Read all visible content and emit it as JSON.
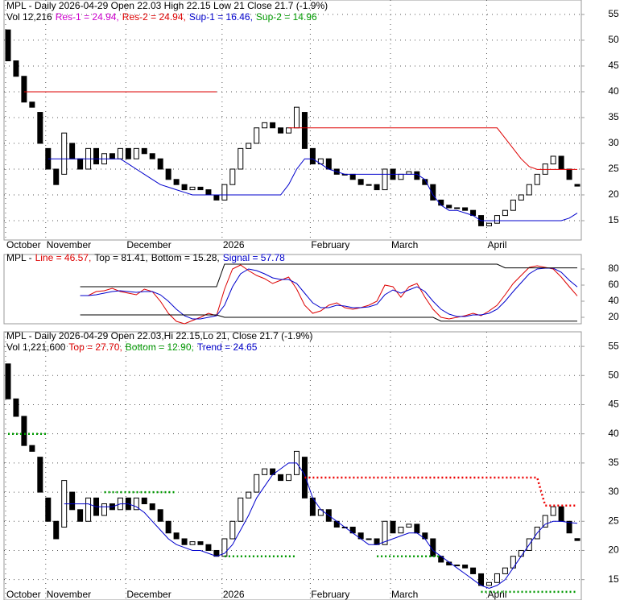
{
  "chart_data": [
    {
      "type": "candlestick",
      "title": "MPL - Daily 2026-04-29 Open 22.03  High 22.15  Low 21  Close 21.7  (-1.9%)",
      "info": [
        {
          "text": "Vol 12,216",
          "color": "#000000"
        },
        {
          "text": "Res-1 = 24.94,",
          "color": "#cc00cc"
        },
        {
          "text": "Res-2 = 24.94,",
          "color": "#dd0000"
        },
        {
          "text": "Sup-1 = 16.46,",
          "color": "#0000cc"
        },
        {
          "text": "Sup-2 = 14.96",
          "color": "#009900"
        }
      ],
      "categories": [
        "October",
        null,
        null,
        null,
        null,
        "November",
        null,
        null,
        null,
        null,
        null,
        null,
        null,
        null,
        null,
        "December",
        null,
        null,
        null,
        null,
        null,
        null,
        null,
        null,
        null,
        null,
        null,
        "2026",
        null,
        null,
        null,
        null,
        null,
        null,
        null,
        null,
        null,
        null,
        "February",
        null,
        null,
        null,
        null,
        null,
        null,
        null,
        null,
        null,
        "March",
        null,
        null,
        null,
        null,
        null,
        null,
        null,
        null,
        null,
        null,
        null,
        "April",
        null,
        null,
        null,
        null,
        null,
        null,
        null,
        null,
        null,
        null,
        null
      ],
      "open": [
        52,
        46,
        43,
        38,
        36,
        29,
        25,
        24,
        30,
        27,
        25,
        29,
        26,
        28,
        27,
        29,
        27,
        29,
        28,
        27,
        25,
        23,
        22,
        21,
        21.5,
        21,
        20,
        19,
        22,
        25,
        29,
        30,
        33,
        34,
        33,
        32,
        33,
        36,
        29,
        26,
        27,
        25,
        24,
        24,
        23,
        22,
        22,
        21,
        25,
        23,
        24,
        24.5,
        23,
        22,
        19,
        18,
        17.5,
        17.5,
        17,
        16,
        14,
        14.5,
        16,
        17,
        19,
        20,
        22,
        24,
        26,
        27.5,
        25,
        22.03
      ],
      "close": [
        46,
        43,
        38,
        37,
        30,
        25,
        22,
        32,
        27,
        25,
        29,
        26,
        28,
        27,
        29,
        27,
        29,
        28,
        27,
        25,
        23,
        22,
        21,
        21.5,
        21,
        20,
        19,
        22,
        25,
        29,
        30,
        33,
        34,
        33,
        32,
        33,
        37,
        29,
        26,
        27,
        25,
        24,
        24,
        23,
        22,
        22,
        21,
        25,
        23,
        24,
        24.5,
        23,
        22,
        19,
        18,
        17.5,
        17.5,
        17,
        16,
        14,
        14.5,
        16,
        17,
        19,
        20,
        22,
        24,
        26,
        27.5,
        25,
        23,
        21.7
      ],
      "series": [
        {
          "color": "#dd0000",
          "dashed": false,
          "values": [
            null,
            null,
            40,
            40,
            40,
            40,
            40,
            40,
            40,
            40,
            40,
            40,
            40,
            40,
            40,
            40,
            40,
            40,
            40,
            40,
            40,
            40,
            40,
            40,
            40,
            40,
            40,
            null,
            null,
            null,
            null,
            null,
            null,
            null,
            null,
            33,
            33,
            33,
            33,
            33,
            33,
            33,
            33,
            33,
            33,
            33,
            33,
            33,
            33,
            33,
            33,
            33,
            33,
            33,
            33,
            33,
            33,
            33,
            33,
            33,
            33,
            33,
            31,
            29,
            27,
            25.5,
            24.94,
            24.94,
            24.94,
            24.94,
            24.94,
            24.94
          ]
        },
        {
          "color": "#0000cc",
          "dashed": false,
          "values": [
            null,
            null,
            null,
            null,
            null,
            27,
            27,
            27,
            27,
            27,
            27,
            27,
            27,
            27,
            27,
            26,
            25,
            24,
            23,
            22,
            21.5,
            21,
            20.5,
            20,
            20,
            20,
            20,
            20,
            20,
            20,
            20,
            20,
            20,
            20,
            20,
            22,
            25,
            27,
            27,
            26,
            25,
            24.5,
            24,
            24,
            24,
            24,
            24,
            24,
            24,
            24,
            24,
            24,
            23,
            20,
            18,
            17,
            17,
            16.5,
            16,
            15,
            15,
            15,
            15,
            15,
            15,
            15,
            15,
            15,
            15,
            15,
            15.5,
            16.46
          ]
        }
      ],
      "ylim": [
        11.25,
        57.8
      ],
      "yticks": [
        15,
        20,
        25,
        30,
        35,
        40,
        45,
        50,
        55
      ],
      "grid": true
    },
    {
      "type": "line",
      "info": [
        {
          "text": "MPL -",
          "color": "#000000"
        },
        {
          "text": "Line = 46.57,",
          "color": "#dd0000"
        },
        {
          "text": "Top = 81.41,",
          "color": "#000000"
        },
        {
          "text": "Bottom = 15.28,",
          "color": "#000000"
        },
        {
          "text": "Signal = 57.78",
          "color": "#0000cc"
        }
      ],
      "series": [
        {
          "color": "#dd0000",
          "dashed": false,
          "values": [
            null,
            null,
            null,
            null,
            null,
            null,
            null,
            null,
            null,
            47,
            47,
            52,
            53,
            56,
            52,
            50,
            48,
            55,
            52,
            40,
            25,
            15,
            12,
            16,
            20,
            25,
            22,
            55,
            80,
            85,
            78,
            72,
            68,
            62,
            66,
            70,
            55,
            35,
            25,
            28,
            35,
            38,
            32,
            30,
            32,
            35,
            40,
            60,
            58,
            45,
            58,
            62,
            45,
            30,
            20,
            18,
            20,
            22,
            25,
            22,
            28,
            35,
            48,
            62,
            72,
            82,
            84,
            82,
            80,
            70,
            58,
            46.57
          ]
        },
        {
          "color": "#0000cc",
          "dashed": false,
          "values": [
            null,
            null,
            null,
            null,
            null,
            null,
            null,
            null,
            null,
            47,
            47,
            48,
            50,
            52,
            53,
            52,
            51,
            52,
            52,
            48,
            40,
            30,
            22,
            18,
            18,
            20,
            22,
            35,
            58,
            74,
            80,
            78,
            74,
            69,
            67,
            67,
            62,
            50,
            38,
            32,
            32,
            35,
            34,
            32,
            32,
            33,
            36,
            48,
            54,
            50,
            54,
            58,
            52,
            40,
            30,
            24,
            21,
            21,
            23,
            23,
            25,
            30,
            40,
            52,
            63,
            74,
            80,
            81,
            81,
            76,
            66,
            57.78
          ]
        },
        {
          "color": "#000000",
          "dashed": false,
          "values": [
            null,
            null,
            null,
            null,
            null,
            null,
            null,
            null,
            null,
            58,
            58,
            58,
            58,
            58,
            58,
            58,
            58,
            58,
            58,
            58,
            58,
            58,
            58,
            58,
            58,
            58,
            58,
            86,
            86,
            86,
            86,
            86,
            86,
            86,
            86,
            86,
            86,
            86,
            86,
            86,
            86,
            86,
            86,
            86,
            86,
            86,
            86,
            86,
            86,
            86,
            86,
            86,
            86,
            86,
            86,
            86,
            86,
            86,
            86,
            86,
            86,
            86,
            81.41,
            81.41,
            81.41,
            81.41,
            81.41,
            81.41,
            81.41,
            81.41,
            81.41,
            81.41
          ]
        },
        {
          "color": "#000000",
          "dashed": false,
          "values": [
            null,
            null,
            null,
            null,
            null,
            null,
            null,
            null,
            null,
            23,
            23,
            23,
            23,
            23,
            23,
            23,
            23,
            23,
            23,
            23,
            23,
            23,
            23,
            23,
            23,
            23,
            23,
            20,
            20,
            20,
            20,
            20,
            20,
            20,
            20,
            20,
            20,
            20,
            20,
            20,
            20,
            20,
            20,
            20,
            20,
            20,
            20,
            20,
            20,
            20,
            20,
            20,
            20,
            20,
            15.28,
            15.28,
            15.28,
            15.28,
            15.28,
            15.28,
            15.28,
            15.28,
            15.28,
            15.28,
            15.28,
            15.28,
            15.28,
            15.28,
            15.28,
            15.28,
            15.28,
            15.28
          ]
        }
      ],
      "ylim": [
        12,
        98
      ],
      "yticks": [
        20,
        40,
        60,
        80
      ],
      "grid": false
    },
    {
      "type": "candlestick",
      "title": "MPL - Daily 2026-04-29 Open 22.03,Hi 22.15,Lo 21, Close 21.7 (-1.9%)",
      "info": [
        {
          "text": "Vol 1,221,600",
          "color": "#000000"
        },
        {
          "text": "Top = 27.70,",
          "color": "#dd0000"
        },
        {
          "text": "Bottom = 12.90,",
          "color": "#009900"
        },
        {
          "text": "Trend = 24.65",
          "color": "#0000cc"
        }
      ],
      "series": [
        {
          "color": "#0000cc",
          "dashed": false,
          "values": [
            null,
            null,
            null,
            null,
            null,
            null,
            null,
            28,
            28,
            28,
            28,
            27.5,
            27.5,
            27.5,
            28,
            28,
            27.5,
            26.5,
            25,
            23.5,
            22,
            21,
            20.5,
            20,
            20,
            19.5,
            19,
            19.5,
            21,
            23.5,
            26,
            29,
            31,
            33,
            34,
            35,
            35,
            33,
            29,
            27,
            26,
            25,
            24,
            23,
            22,
            21,
            21,
            21.5,
            22,
            22.5,
            23,
            23,
            22,
            20,
            19,
            18,
            17,
            16,
            15,
            14,
            13.5,
            14,
            15,
            17,
            19,
            21,
            23,
            24.5,
            25,
            25,
            24.8,
            24.65
          ]
        },
        {
          "color": "#ee0000",
          "dashed": true,
          "values": [
            null,
            null,
            null,
            null,
            null,
            null,
            null,
            null,
            null,
            null,
            null,
            null,
            null,
            null,
            null,
            null,
            null,
            null,
            null,
            null,
            null,
            null,
            null,
            null,
            null,
            null,
            null,
            null,
            null,
            null,
            null,
            null,
            null,
            null,
            null,
            null,
            null,
            32.5,
            32.5,
            32.5,
            32.5,
            32.5,
            32.5,
            32.5,
            32.5,
            32.5,
            32.5,
            32.5,
            32.5,
            32.5,
            32.5,
            32.5,
            32.5,
            32.5,
            32.5,
            32.5,
            32.5,
            32.5,
            32.5,
            32.5,
            32.5,
            32.5,
            32.5,
            32.5,
            32.5,
            32.5,
            32.5,
            27.7,
            27.7,
            27.7,
            27.7,
            27.7
          ]
        },
        {
          "color": "#009900",
          "dashed": true,
          "values": [
            40,
            40,
            40,
            40,
            40,
            40,
            null,
            null,
            null,
            null,
            null,
            null,
            30,
            30,
            30,
            30,
            30,
            30,
            30,
            30,
            30,
            30,
            null,
            null,
            null,
            null,
            null,
            19,
            19,
            19,
            19,
            19,
            19,
            19,
            19,
            19,
            19,
            null,
            null,
            null,
            null,
            null,
            null,
            null,
            null,
            null,
            19,
            19,
            19,
            19,
            19,
            19,
            19,
            19,
            19,
            null,
            null,
            null,
            null,
            12.9,
            12.9,
            12.9,
            12.9,
            12.9,
            12.9,
            12.9,
            12.9,
            12.9,
            12.9,
            12.9,
            12.9,
            12.9
          ]
        }
      ],
      "ylim": [
        11.5,
        57.5
      ],
      "yticks": [
        15,
        20,
        25,
        30,
        35,
        40,
        45,
        50,
        55
      ],
      "grid": true
    }
  ]
}
